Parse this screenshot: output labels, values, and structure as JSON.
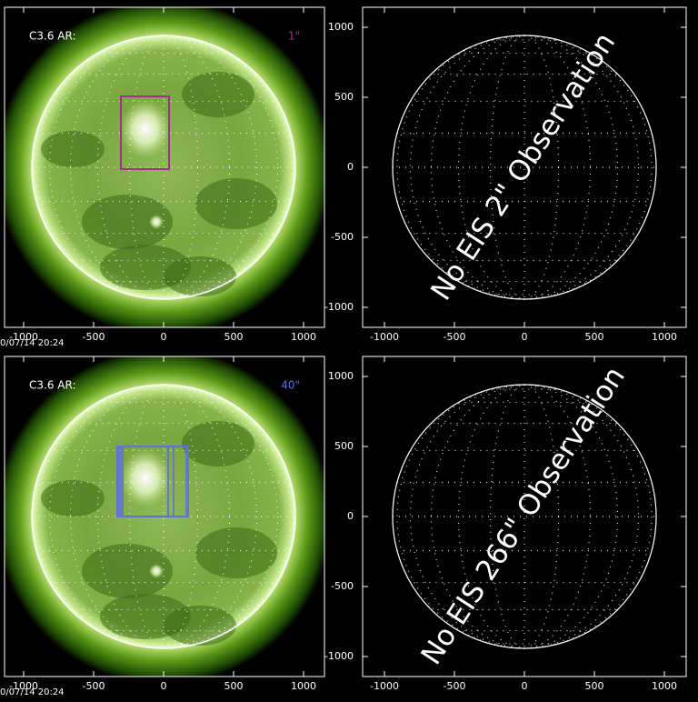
{
  "panels": [
    {
      "label": "C3.6 AR:",
      "slit": "1\"",
      "xticks": [
        "-1000",
        "-500",
        "0",
        "500",
        "1000"
      ],
      "timestamp": "0/07/14 20:24"
    },
    {
      "message": "No EIS 2\" Observation",
      "xticks": [
        "-1000",
        "-500",
        "0",
        "500",
        "1000"
      ],
      "yticks": [
        "1000",
        "500",
        "0",
        "-500",
        "-1000"
      ]
    },
    {
      "label": "C3.6 AR:",
      "slit": "40\"",
      "xticks": [
        "-1000",
        "-500",
        "0",
        "500",
        "1000"
      ],
      "timestamp": "0/07/14 20:24"
    },
    {
      "message": "No EIS 266\" Observation",
      "xticks": [
        "-1000",
        "-500",
        "0",
        "500",
        "1000"
      ],
      "yticks": [
        "1000",
        "500",
        "0",
        "-500",
        "-1000"
      ]
    }
  ]
}
